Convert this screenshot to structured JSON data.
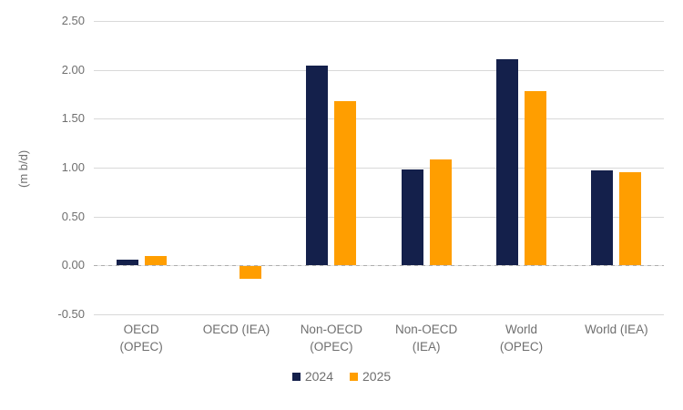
{
  "chart_data": {
    "type": "bar",
    "title": "",
    "xlabel": "",
    "ylabel": "(m b/d)",
    "ylim": [
      -0.5,
      2.5
    ],
    "ytick_labels": [
      "2.50",
      "2.00",
      "1.50",
      "1.00",
      "0.50",
      "0.00",
      "-0.50"
    ],
    "yticks": [
      2.5,
      2.0,
      1.5,
      1.0,
      0.5,
      0.0,
      -0.5
    ],
    "grid": true,
    "legend_position": "bottom",
    "categories": [
      "OECD\n(OPEC)",
      "OECD (IEA)",
      "Non-OECD\n(OPEC)",
      "Non-OECD\n(IEA)",
      "World\n(OPEC)",
      "World (IEA)"
    ],
    "series": [
      {
        "name": "2024",
        "color": "#14204B",
        "values": [
          0.06,
          0.0,
          2.04,
          0.98,
          2.11,
          0.97
        ]
      },
      {
        "name": "2025",
        "color": "#FF9E00",
        "values": [
          0.1,
          -0.13,
          1.68,
          1.08,
          1.78,
          0.95
        ]
      }
    ],
    "colors": {
      "gridline": "#D9D9D9",
      "zero_line": "#ADADAD",
      "axis_text": "#6F6F6F"
    }
  }
}
